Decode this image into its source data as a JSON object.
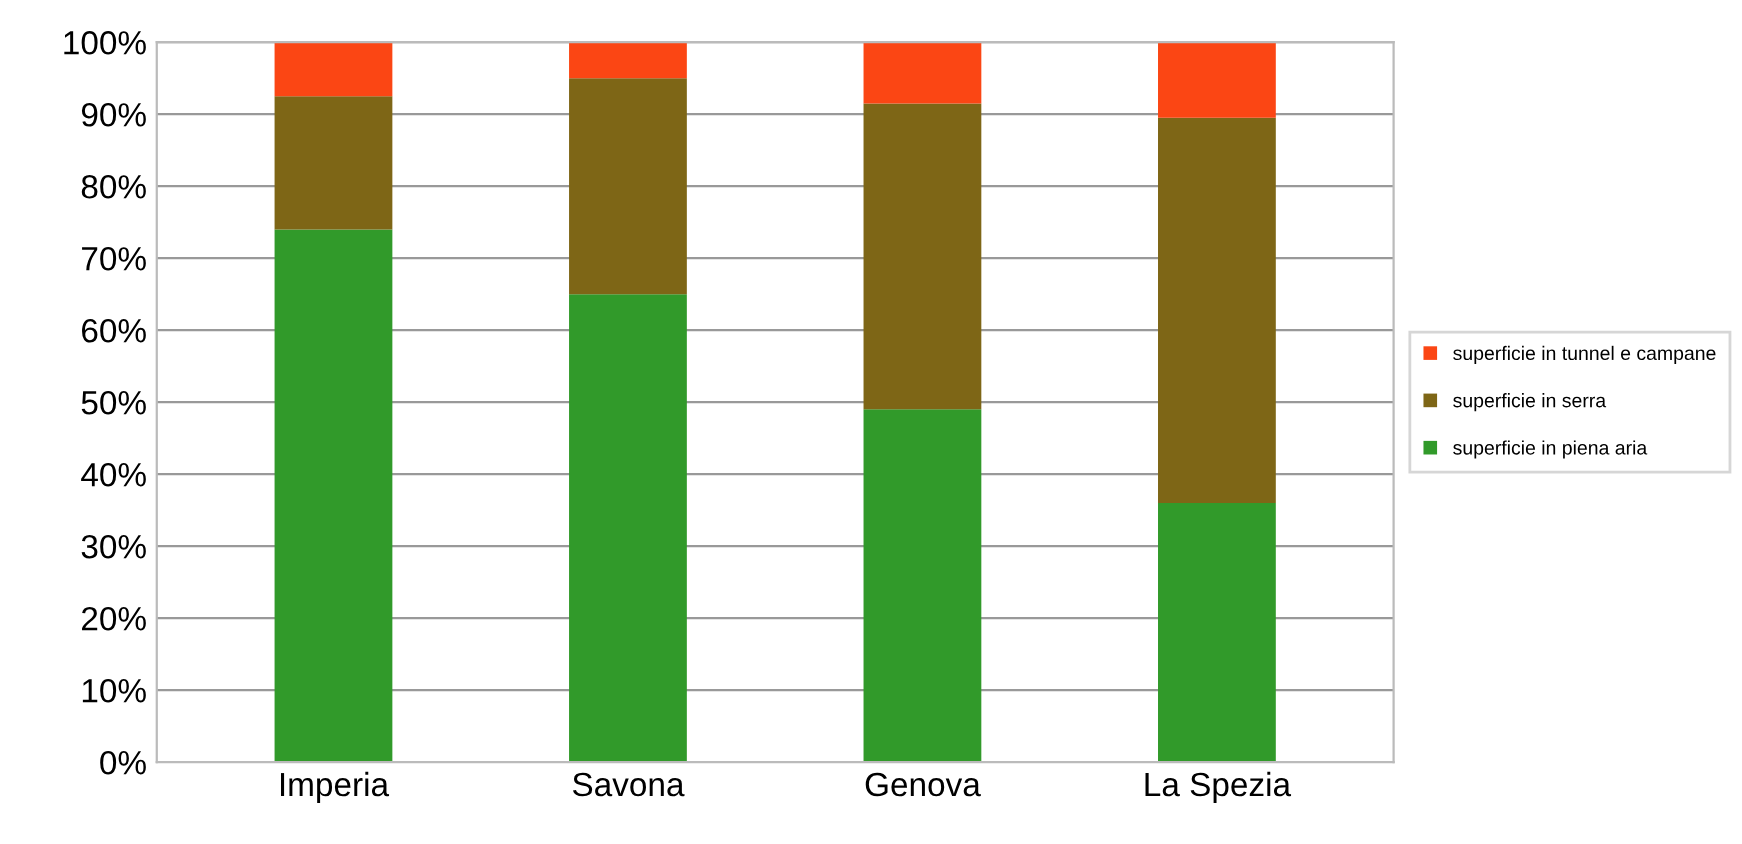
{
  "chart_data": {
    "type": "bar",
    "stacked": true,
    "categories": [
      "Imperia",
      "Savona",
      "Genova",
      "La Spezia"
    ],
    "series": [
      {
        "name": "superficie in piena aria",
        "color": "#319a2a",
        "values": [
          74,
          65,
          49,
          36
        ]
      },
      {
        "name": "superficie in serra",
        "color": "#7e6616",
        "values": [
          18.5,
          30,
          42.5,
          53.5
        ]
      },
      {
        "name": "superficie in tunnel e campane",
        "color": "#fb4614",
        "values": [
          7.5,
          5,
          8.5,
          10.5
        ]
      }
    ],
    "ylim": [
      0,
      100
    ],
    "yticks": [
      {
        "value": 0,
        "label": "0%"
      },
      {
        "value": 10,
        "label": "10%"
      },
      {
        "value": 20,
        "label": "20%"
      },
      {
        "value": 30,
        "label": "30%"
      },
      {
        "value": 40,
        "label": "40%"
      },
      {
        "value": 50,
        "label": "50%"
      },
      {
        "value": 60,
        "label": "60%"
      },
      {
        "value": 70,
        "label": "70%"
      },
      {
        "value": 80,
        "label": "80%"
      },
      {
        "value": 90,
        "label": "90%"
      },
      {
        "value": 100,
        "label": "100%"
      }
    ],
    "grid": "y",
    "legend": "right"
  }
}
